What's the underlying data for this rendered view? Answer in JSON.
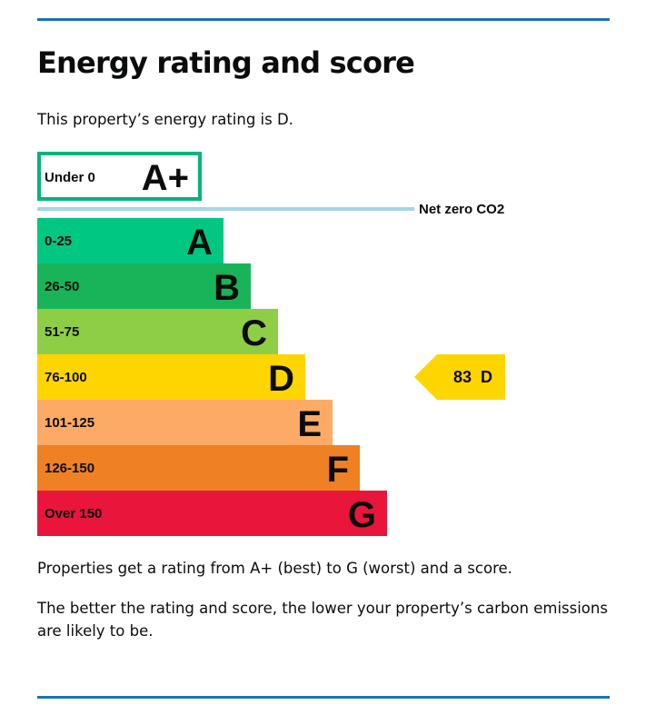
{
  "page": {
    "title": "Energy rating and score",
    "intro": "This property’s energy rating is D.",
    "paragraphs": [
      "Properties get a rating from A+ (best) to G (worst) and a score.",
      "The better the rating and score, the lower your property’s carbon emissions are likely to be."
    ]
  },
  "chart_data": {
    "type": "bar",
    "title": "",
    "top_band": {
      "range": "Under 0",
      "letter": "A+",
      "color": "#00b67a"
    },
    "net_zero_label": "Net zero CO2",
    "net_zero_color": "#a6d6e0",
    "bands": [
      {
        "range": "0-25",
        "letter": "A",
        "color": "#00c781"
      },
      {
        "range": "26-50",
        "letter": "B",
        "color": "#19b459"
      },
      {
        "range": "51-75",
        "letter": "C",
        "color": "#8dce46"
      },
      {
        "range": "76-100",
        "letter": "D",
        "color": "#ffd500"
      },
      {
        "range": "101-125",
        "letter": "E",
        "color": "#fcaa65"
      },
      {
        "range": "126-150",
        "letter": "F",
        "color": "#ef8023"
      },
      {
        "range": "Over 150",
        "letter": "G",
        "color": "#e9153b"
      }
    ],
    "current": {
      "score": "83",
      "letter": "D",
      "color": "#ffd500"
    }
  },
  "colors": {
    "rule": "#1d70b8",
    "text": "#0b0c0c"
  }
}
